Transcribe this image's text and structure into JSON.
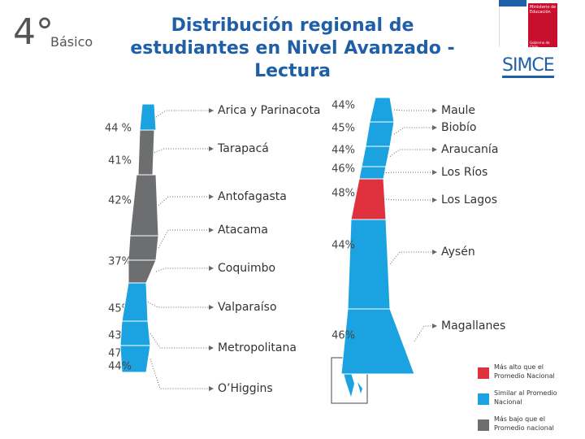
{
  "header": {
    "grade": "4°",
    "level": "Básico",
    "title": "Distribución regional de estudiantes en Nivel Avanzado - Lectura",
    "ministry": "Ministerio de Educación",
    "government": "Gobierno de Chile",
    "logo": "SIMCE"
  },
  "north_regions": [
    {
      "name": "Arica y Parinacota",
      "value": "44 %",
      "color": "#1aa3e0"
    },
    {
      "name": "Tarapacá",
      "value": "41%",
      "color": "#6d6e70"
    },
    {
      "name": "Antofagasta",
      "value": "42%",
      "color": "#6d6e70"
    },
    {
      "name": "Atacama",
      "value": "37%",
      "color": "#6d6e70"
    },
    {
      "name": "Coquimbo",
      "value": "45%",
      "color": "#6d6e70"
    },
    {
      "name": "Valparaíso",
      "value": "43%",
      "color": "#1aa3e0"
    },
    {
      "name": "Metropolitana",
      "value": "47%",
      "color": "#1aa3e0"
    },
    {
      "name": "O’Higgins",
      "value": "44%",
      "color": "#1aa3e0"
    }
  ],
  "south_regions": [
    {
      "name": "Maule",
      "value": "44%",
      "color": "#1aa3e0"
    },
    {
      "name": "Biobío",
      "value": "45%",
      "color": "#1aa3e0"
    },
    {
      "name": "Araucanía",
      "value": "44%",
      "color": "#1aa3e0"
    },
    {
      "name": "Los Ríos",
      "value": "46%",
      "color": "#1aa3e0"
    },
    {
      "name": "Los Lagos",
      "value": "48%",
      "color": "#e0313f"
    },
    {
      "name": "Aysén",
      "value": "44%",
      "color": "#1aa3e0"
    },
    {
      "name": "Magallanes",
      "value": "46%",
      "color": "#1aa3e0"
    }
  ],
  "legend": [
    {
      "label": "Más alto que el Promedio Nacional",
      "color": "#e0313f"
    },
    {
      "label": "Similar al Promedio Nacional",
      "color": "#1aa3e0"
    },
    {
      "label": "Más bajo que el Promedio nacional",
      "color": "#6d6e70"
    }
  ]
}
